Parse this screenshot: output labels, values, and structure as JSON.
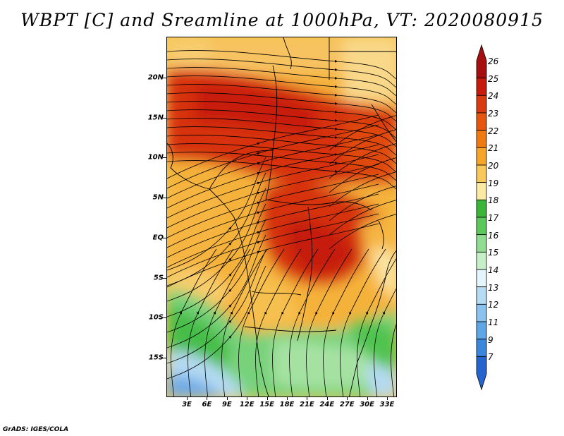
{
  "title": "WBPT [C] and Sreamline at 1000hPa, VT: 2020080915",
  "credit": "GrADS: IGES/COLA",
  "lat_labels": [
    "20N",
    "15N",
    "10N",
    "5N",
    "EQ",
    "5S",
    "10S",
    "15S"
  ],
  "lon_labels": [
    "3E",
    "6E",
    "9E",
    "12E",
    "15E",
    "18E",
    "21E",
    "24E",
    "27E",
    "30E",
    "33E"
  ],
  "colorbar": {
    "labels": [
      "26",
      "25",
      "24",
      "23",
      "22",
      "21",
      "20",
      "19",
      "18",
      "17",
      "16",
      "15",
      "14",
      "13",
      "12",
      "11",
      "9",
      "7"
    ],
    "colors": [
      "#a50f0f",
      "#c51a0c",
      "#d93a0f",
      "#e6560f",
      "#f07a12",
      "#f5a52a",
      "#f8c85a",
      "#fbe9a4",
      "#3ab53a",
      "#5cc85c",
      "#90dc90",
      "#c7efc7",
      "#e4f6fb",
      "#b6dcf5",
      "#8cc3ee",
      "#5ea6e6",
      "#3a86dd",
      "#2563cf"
    ]
  }
}
